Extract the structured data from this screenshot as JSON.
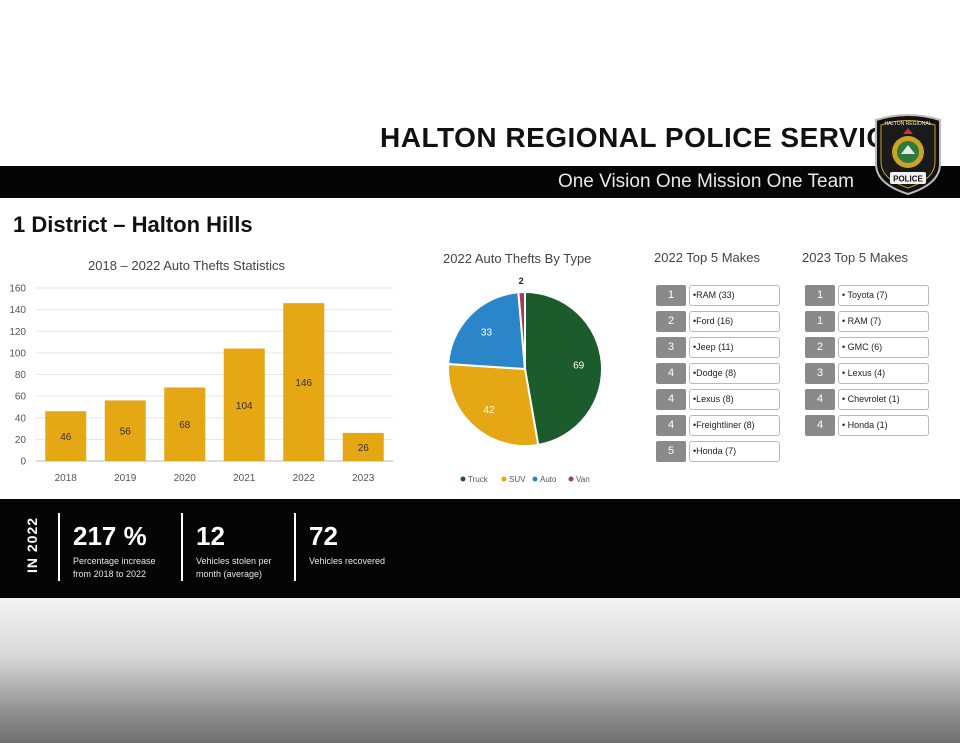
{
  "header": {
    "org_title": "HALTON REGIONAL POLICE SERVICE",
    "motto": "One Vision  One Mission  One Team",
    "badge": {
      "top_text": "HALTON REGIONAL",
      "bottom_text": "POLICE"
    }
  },
  "district_title": "1 District – Halton Hills",
  "chart_data": [
    {
      "type": "bar",
      "title": "2018 – 2022 Auto Thefts Statistics",
      "categories": [
        "2018",
        "2019",
        "2020",
        "2021",
        "2022",
        "2023"
      ],
      "values": [
        46,
        56,
        68,
        104,
        146,
        26
      ],
      "ylim": [
        0,
        160
      ],
      "yticks": [
        0,
        20,
        40,
        60,
        80,
        100,
        120,
        140,
        160
      ],
      "grid": true,
      "color": "#e5a713"
    },
    {
      "type": "pie",
      "title": "2022 Auto Thefts By Type",
      "labels": [
        "Truck",
        "SUV",
        "Auto",
        "Van"
      ],
      "values": [
        69,
        42,
        33,
        2
      ],
      "colors": [
        "#1c5b2b",
        "#e5a713",
        "#2b86c9",
        "#a53a5c"
      ],
      "legend": "bottom"
    }
  ],
  "makes_2022": {
    "title": "2022 Top 5 Makes",
    "items": [
      {
        "rank": "1",
        "label": "•RAM (33)"
      },
      {
        "rank": "2",
        "label": "•Ford (16)"
      },
      {
        "rank": "3",
        "label": "•Jeep (11)"
      },
      {
        "rank": "4",
        "label": "•Dodge (8)"
      },
      {
        "rank": "4",
        "label": "•Lexus (8)"
      },
      {
        "rank": "4",
        "label": "•Freightliner (8)"
      },
      {
        "rank": "5",
        "label": "•Honda (7)"
      }
    ]
  },
  "makes_2023": {
    "title": "2023 Top 5 Makes",
    "items": [
      {
        "rank": "1",
        "label": "• Toyota (7)"
      },
      {
        "rank": "1",
        "label": "• RAM (7)"
      },
      {
        "rank": "2",
        "label": "• GMC (6)"
      },
      {
        "rank": "3",
        "label": "• Lexus (4)"
      },
      {
        "rank": "4",
        "label": "• Chevrolet (1)"
      },
      {
        "rank": "4",
        "label": "• Honda (1)"
      }
    ]
  },
  "stats": {
    "period_label": "IN 2022",
    "items": [
      {
        "value": "217 %",
        "label": "Percentage increase from 2018 to 2022"
      },
      {
        "value": "12",
        "label": "Vehicles stolen per month (average)"
      },
      {
        "value": "72",
        "label": "Vehicles recovered"
      }
    ]
  }
}
